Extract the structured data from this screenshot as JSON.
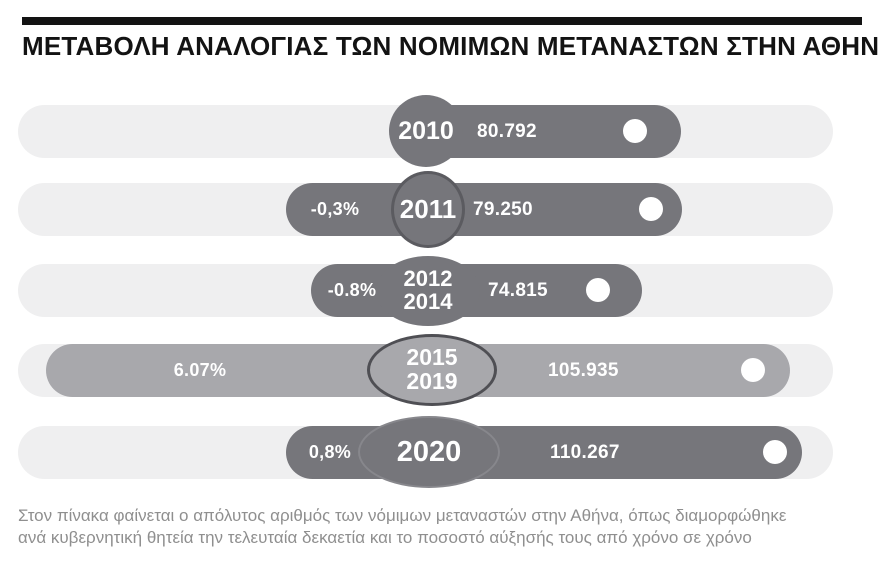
{
  "header": {
    "title": "ΜΕΤΑΒΟΛΗ ΑΝΑΛΟΓΙΑΣ ΤΩΝ ΝΟΜΙΜΩΝ ΜΕΤΑΝΑΣΤΩΝ ΣΤΗΝ ΑΘΗΝΑ"
  },
  "footer": {
    "line1": "Στον πίνακα φαίνεται ο απόλυτος αριθμός των νόμιμων μεταναστών στην Αθήνα, όπως διαμορφώθηκε",
    "line2": "ανά κυβερνητική θητεία την τελευταία δεκαετία και το ποσοστό αύξησής τους από χρόνο σε χρόνο"
  },
  "colors": {
    "bar_dark": "#76767b",
    "bar_medium": "#a8a8ac",
    "track": "#efeff0",
    "title_text": "#131313",
    "caption_text": "#8f8f8f",
    "label_text": "#ffffff",
    "badge_outline_dark": "#4f4f54"
  },
  "chart_data": {
    "type": "bar",
    "title": "ΜΕΤΑΒΟΛΗ ΑΝΑΛΟΓΙΑΣ ΤΩΝ ΝΟΜΙΜΩΝ ΜΕΤΑΝΑΣΤΩΝ ΣΤΗΝ ΑΘΗΝΑ",
    "orientation": "horizontal",
    "legend": "none",
    "grid": false,
    "rows": [
      {
        "period_lines": [
          "2010"
        ],
        "value": 80792,
        "value_label": "80.792",
        "change_pct": null,
        "change_label": ""
      },
      {
        "period_lines": [
          "2011"
        ],
        "value": 79250,
        "value_label": "79.250",
        "change_pct": -0.3,
        "change_label": "-0,3%"
      },
      {
        "period_lines": [
          "2012",
          "2014"
        ],
        "value": 74815,
        "value_label": "74.815",
        "change_pct": -0.8,
        "change_label": "-0.8%"
      },
      {
        "period_lines": [
          "2015",
          "2019"
        ],
        "value": 105935,
        "value_label": "105.935",
        "change_pct": 6.07,
        "change_label": "6.07%"
      },
      {
        "period_lines": [
          "2020"
        ],
        "value": 110267,
        "value_label": "110.267",
        "change_pct": 0.8,
        "change_label": "0,8%"
      }
    ]
  }
}
